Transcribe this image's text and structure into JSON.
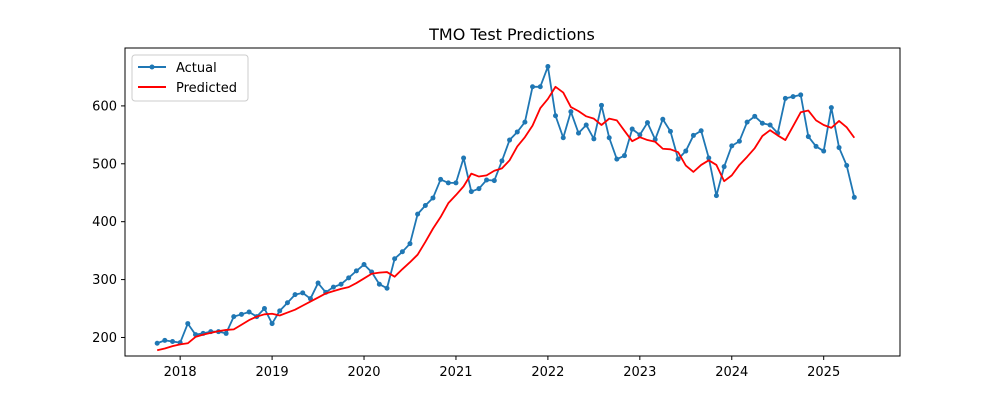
{
  "chart_data": {
    "type": "line",
    "title": "TMO Test Predictions",
    "xlabel": "",
    "ylabel": "",
    "xlim": [
      2017.4,
      2025.83
    ],
    "ylim": [
      168,
      700
    ],
    "x_ticks": [
      2018,
      2019,
      2020,
      2021,
      2022,
      2023,
      2024,
      2025
    ],
    "x_tick_labels": [
      "2018",
      "2019",
      "2020",
      "2021",
      "2022",
      "2023",
      "2024",
      "2025"
    ],
    "y_ticks": [
      200,
      300,
      400,
      500,
      600
    ],
    "y_tick_labels": [
      "200",
      "300",
      "400",
      "500",
      "600"
    ],
    "grid": false,
    "legend_position": "top-left",
    "x": [
      2017.75,
      2017.833,
      2017.917,
      2018.0,
      2018.083,
      2018.167,
      2018.25,
      2018.333,
      2018.417,
      2018.5,
      2018.583,
      2018.667,
      2018.75,
      2018.833,
      2018.917,
      2019.0,
      2019.083,
      2019.167,
      2019.25,
      2019.333,
      2019.417,
      2019.5,
      2019.583,
      2019.667,
      2019.75,
      2019.833,
      2019.917,
      2020.0,
      2020.083,
      2020.167,
      2020.25,
      2020.333,
      2020.417,
      2020.5,
      2020.583,
      2020.667,
      2020.75,
      2020.833,
      2020.917,
      2021.0,
      2021.083,
      2021.167,
      2021.25,
      2021.333,
      2021.417,
      2021.5,
      2021.583,
      2021.667,
      2021.75,
      2021.833,
      2021.917,
      2022.0,
      2022.083,
      2022.167,
      2022.25,
      2022.333,
      2022.417,
      2022.5,
      2022.583,
      2022.667,
      2022.75,
      2022.833,
      2022.917,
      2023.0,
      2023.083,
      2023.167,
      2023.25,
      2023.333,
      2023.417,
      2023.5,
      2023.583,
      2023.667,
      2023.75,
      2023.833,
      2023.917,
      2024.0,
      2024.083,
      2024.167,
      2024.25,
      2024.333,
      2024.417,
      2024.5,
      2024.583,
      2024.667,
      2024.75,
      2024.833,
      2024.917,
      2025.0,
      2025.083,
      2025.167,
      2025.25,
      2025.333
    ],
    "series": [
      {
        "name": "Actual",
        "color": "#1f77b4",
        "marker": "circle",
        "values": [
          190,
          195,
          193,
          191,
          224,
          205,
          207,
          210,
          210,
          207,
          236,
          240,
          244,
          236,
          250,
          224,
          246,
          260,
          274,
          277,
          267,
          294,
          278,
          287,
          292,
          303,
          315,
          326,
          313,
          292,
          285,
          336,
          348,
          362,
          413,
          428,
          441,
          473,
          467,
          467,
          510,
          452,
          457,
          472,
          471,
          505,
          541,
          555,
          572,
          633,
          633,
          668,
          583,
          545,
          590,
          553,
          567,
          543,
          601,
          545,
          508,
          514,
          560,
          550,
          571,
          542,
          577,
          556,
          508,
          522,
          549,
          557,
          510,
          445,
          495,
          531,
          539,
          572,
          582,
          570,
          567,
          553,
          613,
          616,
          619,
          547,
          530,
          522,
          597,
          528,
          497,
          442
        ]
      },
      {
        "name": "Predicted",
        "color": "#ff0000",
        "marker": "none",
        "values": [
          178,
          181,
          185,
          188,
          190,
          201,
          205,
          208,
          211,
          213,
          214,
          222,
          230,
          236,
          240,
          241,
          238,
          243,
          248,
          255,
          262,
          269,
          276,
          280,
          284,
          287,
          294,
          302,
          310,
          312,
          313,
          305,
          318,
          330,
          343,
          365,
          388,
          408,
          432,
          446,
          461,
          483,
          478,
          480,
          488,
          492,
          506,
          530,
          546,
          566,
          596,
          612,
          633,
          623,
          598,
          591,
          582,
          578,
          567,
          578,
          575,
          557,
          539,
          546,
          541,
          538,
          526,
          525,
          520,
          497,
          486,
          498,
          506,
          498,
          470,
          480,
          498,
          512,
          527,
          548,
          558,
          549,
          541,
          565,
          589,
          592,
          575,
          567,
          562,
          574,
          563,
          545
        ]
      }
    ]
  }
}
